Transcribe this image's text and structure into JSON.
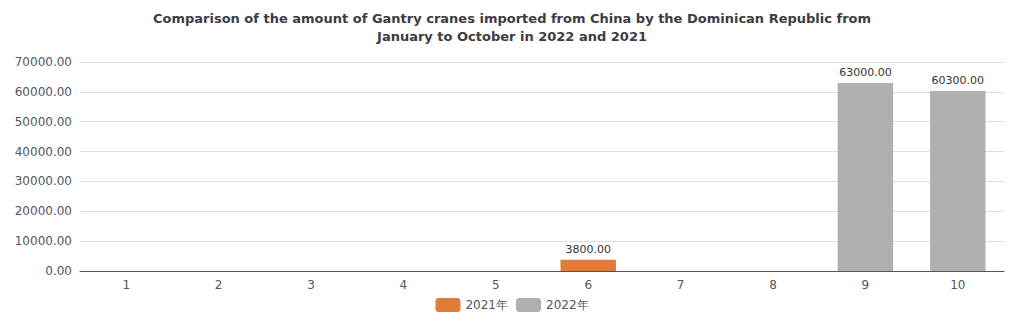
{
  "chart_data": {
    "type": "bar",
    "title": "Comparison of the amount of Gantry cranes imported from China by the Dominican Republic from\nJanuary to October in 2022 and 2021",
    "categories": [
      "1",
      "2",
      "3",
      "4",
      "5",
      "6",
      "7",
      "8",
      "9",
      "10"
    ],
    "series": [
      {
        "name": "2021年",
        "color": "#e07b39",
        "values": [
          0,
          0,
          0,
          0,
          0,
          3800,
          0,
          0,
          0,
          0
        ],
        "value_labels": [
          null,
          null,
          null,
          null,
          null,
          "3800.00",
          null,
          null,
          null,
          null
        ]
      },
      {
        "name": "2022年",
        "color": "#b0b0b0",
        "values": [
          0,
          0,
          0,
          0,
          0,
          0,
          0,
          0,
          63000,
          60300
        ],
        "value_labels": [
          null,
          null,
          null,
          null,
          null,
          null,
          null,
          null,
          "63000.00",
          "60300.00"
        ]
      }
    ],
    "ylim": [
      0,
      70000
    ],
    "yticks": [
      {
        "value": 0,
        "label": "0.00"
      },
      {
        "value": 10000,
        "label": "10000.00"
      },
      {
        "value": 20000,
        "label": "20000.00"
      },
      {
        "value": 30000,
        "label": "30000.00"
      },
      {
        "value": 40000,
        "label": "40000.00"
      },
      {
        "value": 50000,
        "label": "50000.00"
      },
      {
        "value": 60000,
        "label": "60000.00"
      },
      {
        "value": 70000,
        "label": "70000.00"
      }
    ],
    "grid": true,
    "legend": "bottom",
    "data_labels": true
  }
}
